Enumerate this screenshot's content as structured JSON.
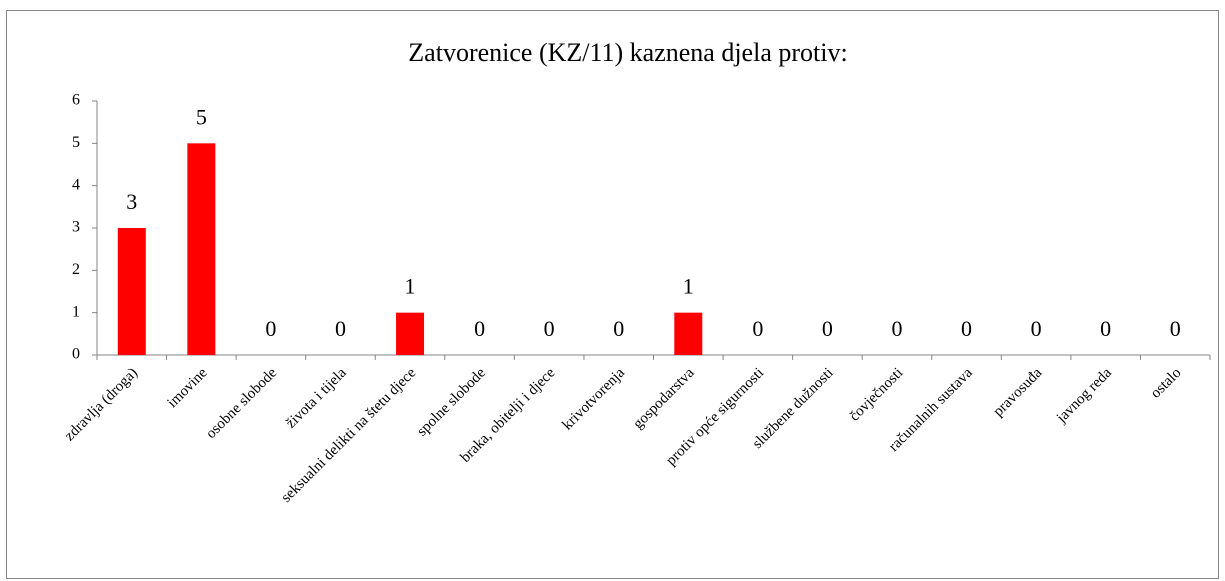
{
  "chart_data": {
    "type": "bar",
    "title": "Zatvorenice (KZ/11) kaznena djela protiv:",
    "categories": [
      "zdravlja (droga)",
      "imovine",
      "osobne slobode",
      "života i tijela",
      "seksualni delikti na štetu djece",
      "spolne slobode",
      "braka, obitelji i djece",
      "krivotvorenja",
      "gospodarstva",
      "protiv opće sigurnosti",
      "službene dužnosti",
      "čovječnosti",
      "računalnih sustava",
      "pravosuđa",
      "javnog reda",
      "ostalo"
    ],
    "values": [
      3,
      5,
      0,
      0,
      1,
      0,
      0,
      0,
      1,
      0,
      0,
      0,
      0,
      0,
      0,
      0
    ],
    "color": "#ff0000",
    "ylim": [
      0,
      6
    ],
    "yticks": [
      0,
      1,
      2,
      3,
      4,
      5,
      6
    ],
    "grid": false
  }
}
